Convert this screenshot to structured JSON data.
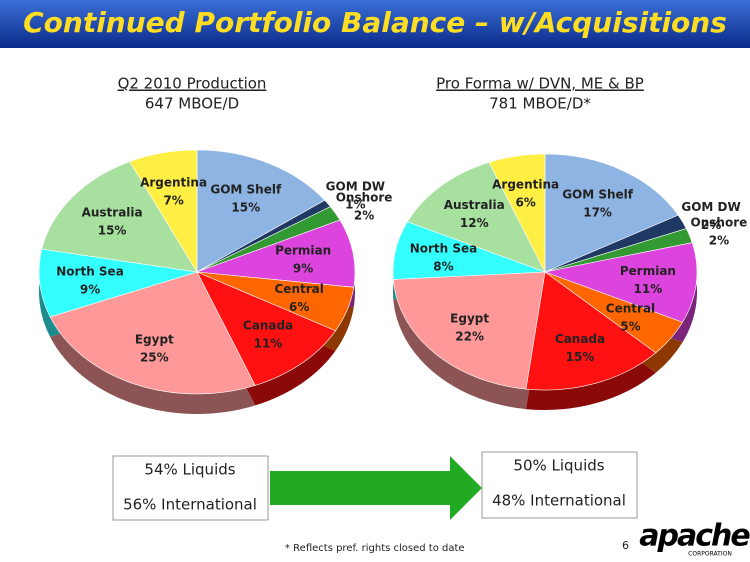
{
  "title": "Continued Portfolio Balance – w/Acquisitions",
  "chart_data": [
    {
      "type": "pie",
      "title": "Q2 2010 Production",
      "subtitle": "647 MBOE/D",
      "categories": [
        "GOM Shelf",
        "GOM DW",
        "Onshore",
        "Permian",
        "Central",
        "Canada",
        "Egypt",
        "North Sea",
        "Australia",
        "Argentina"
      ],
      "values": [
        15,
        1,
        2,
        9,
        6,
        11,
        25,
        9,
        15,
        7
      ],
      "value_labels": [
        "15%",
        "1%",
        "2%",
        "9%",
        "6%",
        "11%",
        "25%",
        "9%",
        "15%",
        "7%"
      ],
      "colors": [
        "#8db4e2",
        "#1f3864",
        "#339933",
        "#dd44dd",
        "#ff6600",
        "#ff1111",
        "#ff9999",
        "#33ffff",
        "#a8e0a0",
        "#ffee44"
      ]
    },
    {
      "type": "pie",
      "title": "Pro Forma w/ DVN, ME & BP",
      "subtitle": "781 MBOE/D*",
      "categories": [
        "GOM Shelf",
        "GOM DW",
        "Onshore",
        "Permian",
        "Central",
        "Canada",
        "Egypt",
        "North Sea",
        "Australia",
        "Argentina"
      ],
      "values": [
        17,
        2,
        2,
        11,
        5,
        15,
        22,
        8,
        12,
        6
      ],
      "value_labels": [
        "17%",
        "2%",
        "2%",
        "11%",
        "5%",
        "15%",
        "22%",
        "8%",
        "12%",
        "6%"
      ],
      "colors": [
        "#8db4e2",
        "#1f3864",
        "#339933",
        "#dd44dd",
        "#ff6600",
        "#ff1111",
        "#ff9999",
        "#33ffff",
        "#a8e0a0",
        "#ffee44"
      ]
    }
  ],
  "boxes": [
    [
      "54% Liquids",
      "56% International"
    ],
    [
      "50% Liquids",
      "48% International"
    ]
  ],
  "footnote": "* Reflects pref. rights closed to date",
  "page_number": "6",
  "logo": "apache",
  "logo_sub": "CORPORATION"
}
